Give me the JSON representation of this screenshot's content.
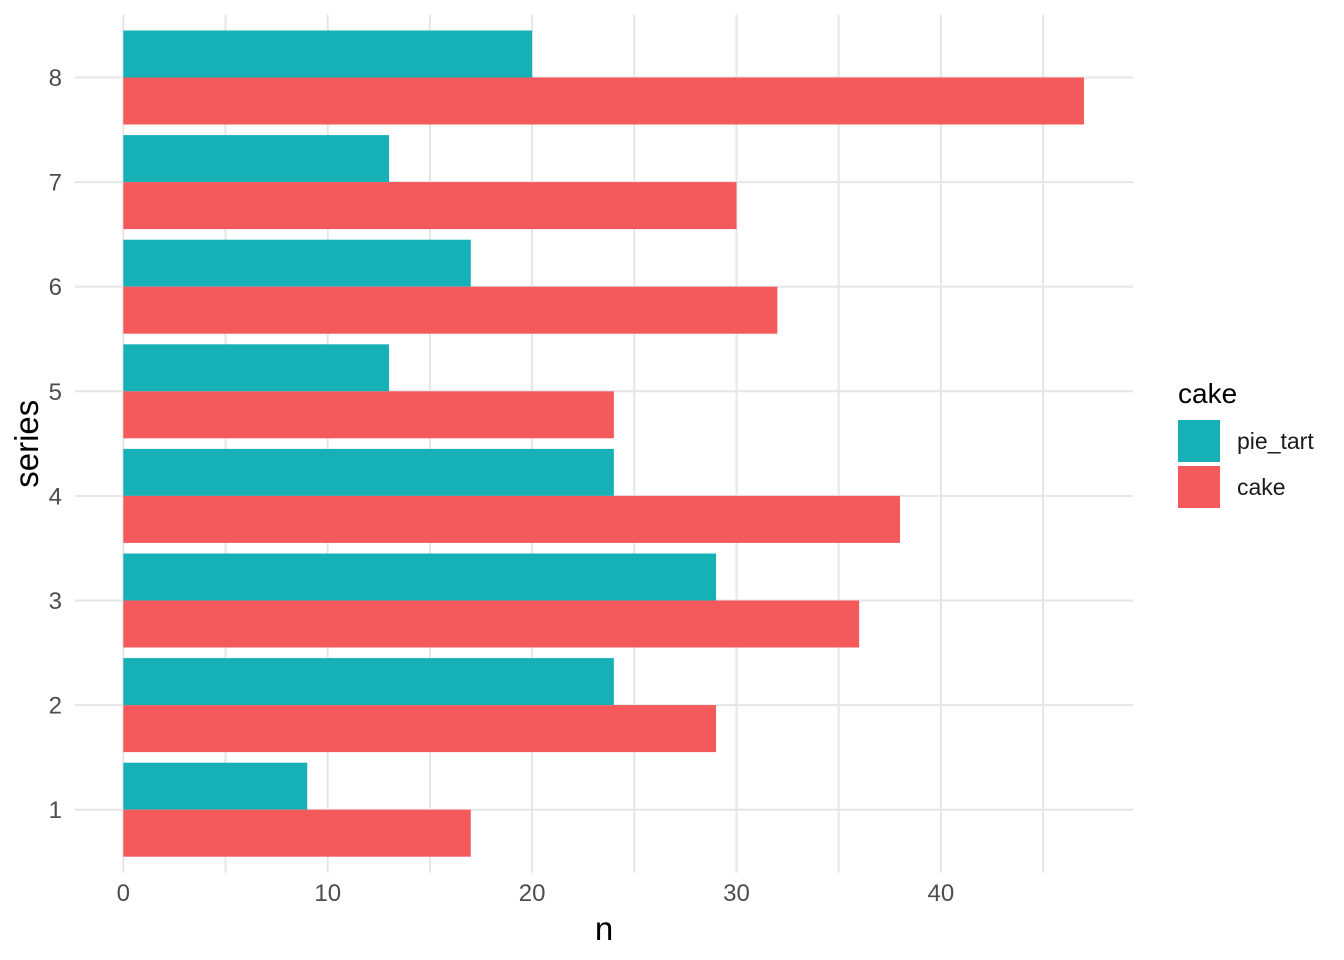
{
  "chart_data": {
    "type": "bar",
    "orientation": "horizontal",
    "title": "",
    "xlabel": "n",
    "ylabel": "series",
    "categories": [
      "1",
      "2",
      "3",
      "4",
      "5",
      "6",
      "7",
      "8"
    ],
    "series": [
      {
        "name": "pie_tart",
        "color": "#16B1B7",
        "values": [
          9,
          24,
          29,
          24,
          13,
          17,
          13,
          20
        ]
      },
      {
        "name": "cake",
        "color": "#F4595C",
        "values": [
          17,
          29,
          36,
          38,
          24,
          32,
          30,
          47
        ]
      }
    ],
    "x_ticks": [
      0,
      10,
      20,
      30,
      40
    ],
    "x_minor_gridlines": [
      5,
      15,
      25,
      35,
      45
    ],
    "xlim": [
      0,
      49.4
    ],
    "grid": true,
    "legend": {
      "title": "cake",
      "position": "right"
    },
    "colors": {
      "pie_tart": "#16B1B7",
      "cake": "#F4595C",
      "gridline": "#E6E6E6",
      "tick_label": "#4D4D4D",
      "axis_title": "#000000",
      "background": "#FFFFFF"
    }
  }
}
